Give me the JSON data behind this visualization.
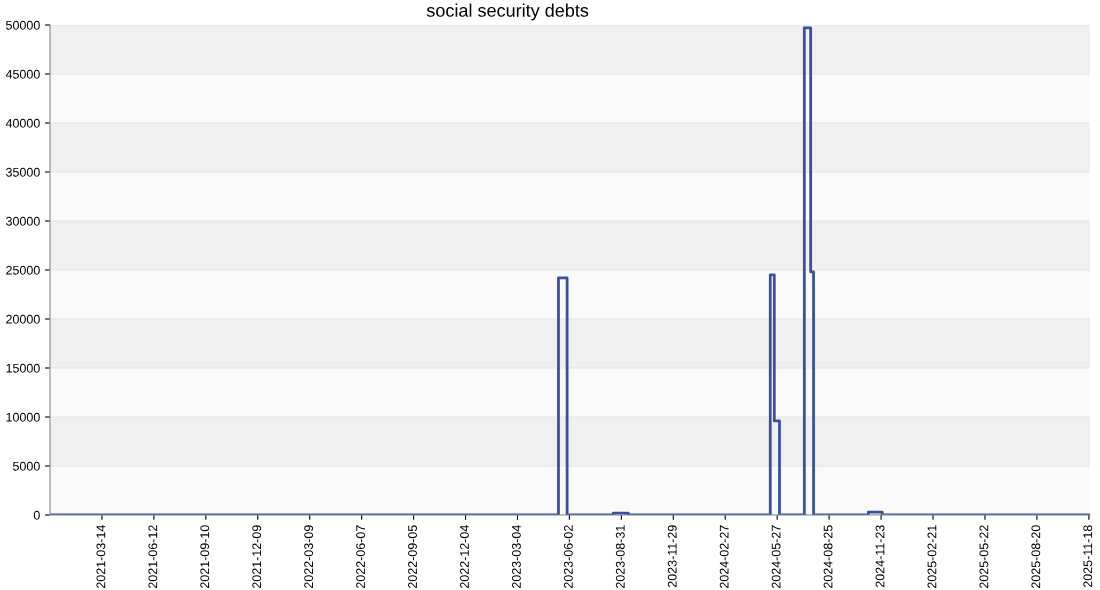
{
  "chart_data": {
    "type": "step",
    "title": "social security debts",
    "x": [
      "2020-12-14",
      "2023-05-14",
      "2023-05-29",
      "2023-08-17",
      "2023-09-12",
      "2024-05-15",
      "2024-05-22",
      "2024-05-31",
      "2024-07-13",
      "2024-07-24",
      "2024-07-29",
      "2024-11-01",
      "2024-11-25",
      "2025-11-20"
    ],
    "series": [
      {
        "color": "#3a4fa0",
        "values": [
          0,
          24200,
          0,
          200,
          0,
          24500,
          9600,
          0,
          49700,
          24800,
          0,
          300,
          0,
          0
        ]
      }
    ],
    "xlim": [
      "2020-12-14",
      "2025-11-20"
    ],
    "xticks": [
      "2021-03-14",
      "2021-06-12",
      "2021-09-10",
      "2021-12-09",
      "2022-03-09",
      "2022-06-07",
      "2022-09-05",
      "2022-12-04",
      "2023-03-04",
      "2023-06-02",
      "2023-08-31",
      "2023-11-29",
      "2024-02-27",
      "2024-05-27",
      "2024-08-25",
      "2024-11-23",
      "2025-02-21",
      "2025-05-22",
      "2025-08-20",
      "2025-11-18"
    ],
    "ylim": [
      0,
      50000
    ],
    "yticks": [
      0,
      5000,
      10000,
      15000,
      20000,
      25000,
      30000,
      35000,
      40000,
      45000,
      50000
    ],
    "grid": "y",
    "legend": false,
    "line_style": "solid",
    "marker": "none"
  }
}
